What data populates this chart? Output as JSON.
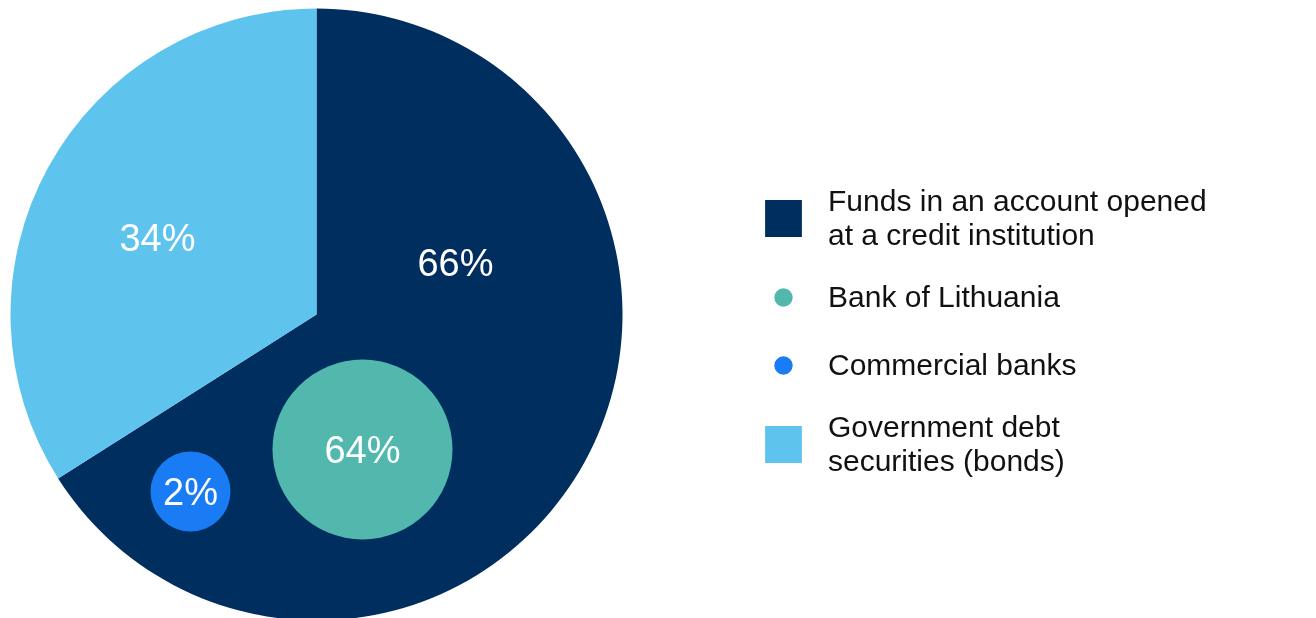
{
  "chart_data": [
    {
      "type": "pie",
      "categories": [
        "Funds in an account opened\nat a credit institution",
        "Government debt\nsecurities (bonds)"
      ],
      "values": [
        66,
        34
      ],
      "colors": [
        "#002e5f",
        "#5ec4ee"
      ],
      "value_labels": [
        "66%",
        "34%"
      ],
      "legend": "right"
    },
    {
      "type": "other",
      "categories": [
        "Bank of Lithuania",
        "Commercial banks"
      ],
      "values": [
        64,
        2
      ],
      "colors": [
        "#52b8ae",
        "#1a7cf5"
      ],
      "value_labels": [
        "64%",
        "2%"
      ]
    }
  ]
}
